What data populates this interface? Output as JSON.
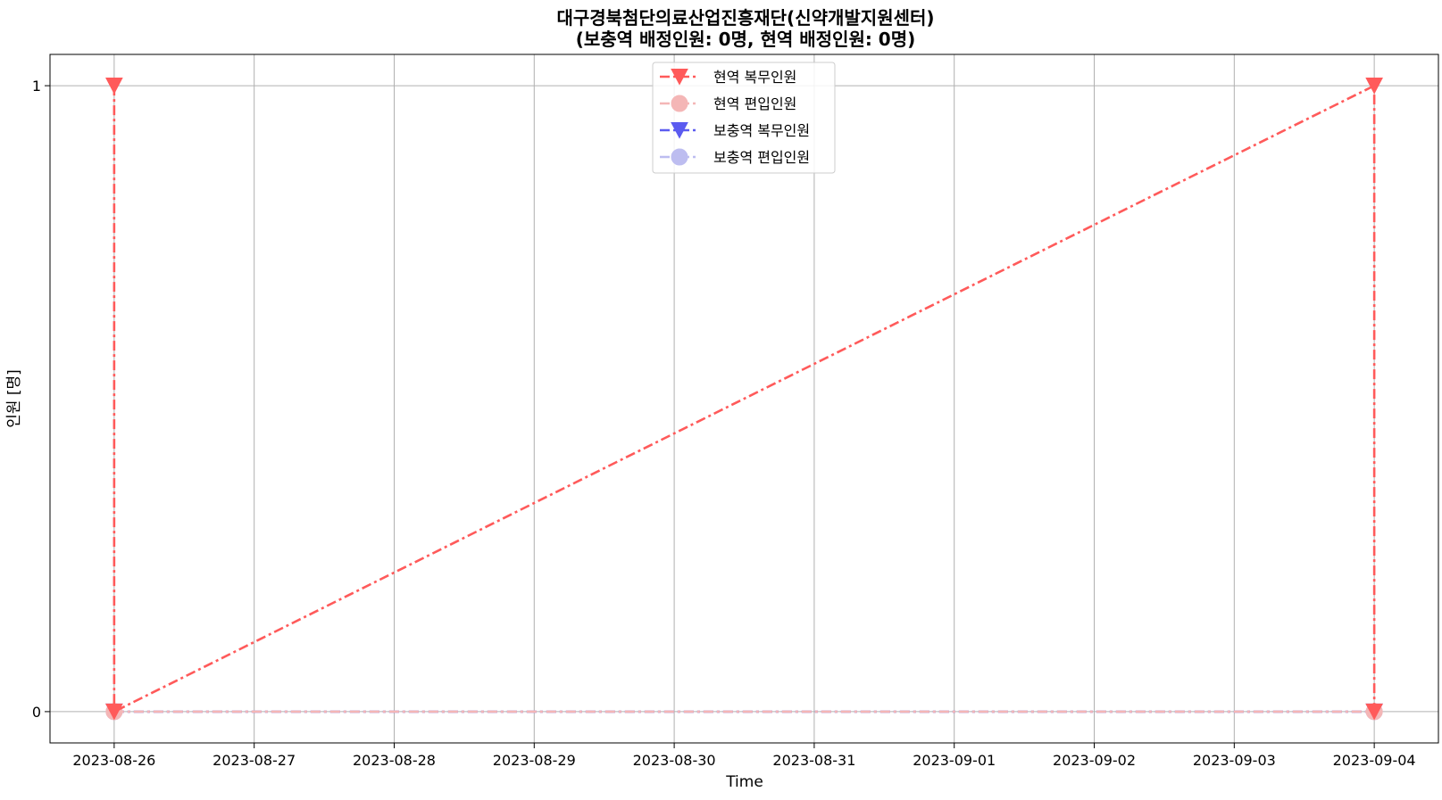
{
  "chart_data": {
    "type": "line",
    "title": "대구경북첨단의료산업진흥재단(신약개발지원센터)",
    "subtitle": "(보충역   배정인원:   0명,   현역   배정인원:   0명)",
    "xlabel": "Time",
    "ylabel": "인원   [명]",
    "x_ticks": [
      "2023-08-26",
      "2023-08-27",
      "2023-08-28",
      "2023-08-29",
      "2023-08-30",
      "2023-08-31",
      "2023-09-01",
      "2023-09-02",
      "2023-09-03",
      "2023-09-04"
    ],
    "y_ticks": [
      "0",
      "1"
    ],
    "xlim": [
      "2023-08-25T13:00",
      "2023-09-04T11:00"
    ],
    "ylim": [
      -0.05,
      1.05
    ],
    "grid": true,
    "legend_position": "top-center",
    "series": [
      {
        "name": "현역   복무인원",
        "color": "#ff5a5a",
        "marker": "triangle-down",
        "points": [
          {
            "x": "2023-08-26",
            "y": 1
          },
          {
            "x": "2023-08-26",
            "y": 0
          },
          {
            "x": "2023-09-04",
            "y": 1
          },
          {
            "x": "2023-09-04",
            "y": 0
          }
        ]
      },
      {
        "name": "현역   편입인원",
        "color": "#f4b6b6",
        "marker": "circle",
        "points": [
          {
            "x": "2023-08-26",
            "y": 0
          },
          {
            "x": "2023-09-04",
            "y": 0
          }
        ]
      },
      {
        "name": "보충역   복무인원",
        "color": "#5b5bf0",
        "marker": "triangle-down",
        "points": [
          {
            "x": "2023-08-26",
            "y": 0
          },
          {
            "x": "2023-09-04",
            "y": 0
          }
        ]
      },
      {
        "name": "보충역   편입인원",
        "color": "#bdbdf0",
        "marker": "circle",
        "points": [
          {
            "x": "2023-08-26",
            "y": 0
          },
          {
            "x": "2023-09-04",
            "y": 0
          }
        ]
      }
    ]
  }
}
